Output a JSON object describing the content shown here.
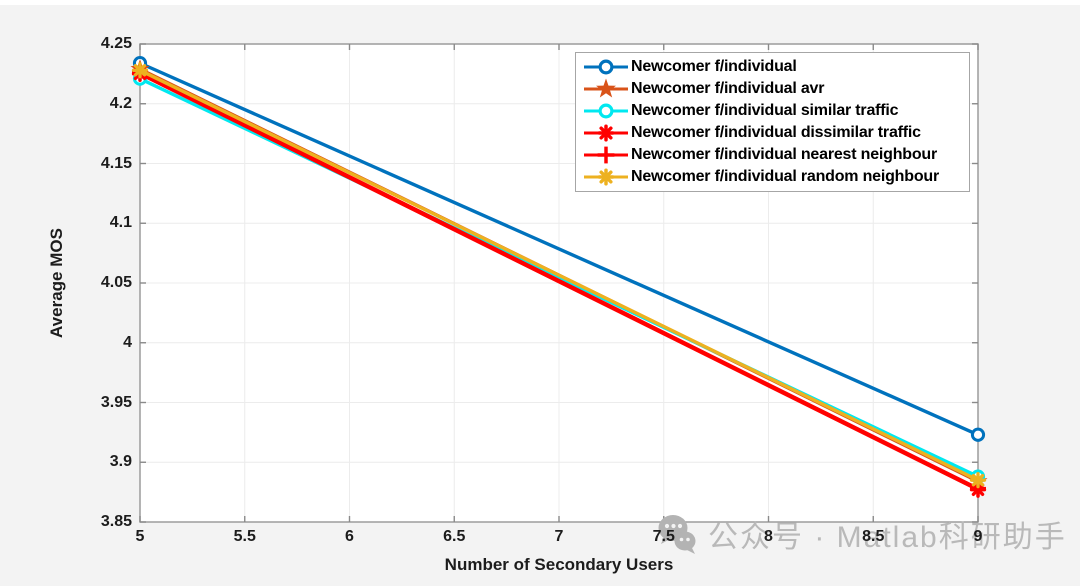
{
  "figure": {
    "background": "#f3f3f3",
    "plot_background": "#ffffff",
    "frame_color": "#9c9c9c",
    "grid_color": "#ececec",
    "tick_mark_color": "#8a8a8a",
    "text_color": "#1c1c1c"
  },
  "chart_data": {
    "type": "line",
    "title": "",
    "xlabel": "Number of Secondary Users",
    "ylabel": "Average MOS",
    "xlim": [
      5,
      9
    ],
    "ylim": [
      3.85,
      4.25
    ],
    "x": [
      5,
      9
    ],
    "x_ticks": [
      5,
      5.5,
      6,
      6.5,
      7,
      7.5,
      8,
      8.5,
      9
    ],
    "x_tick_labels": [
      "5",
      "5.5",
      "6",
      "6.5",
      "7",
      "7.5",
      "8",
      "8.5",
      "9"
    ],
    "y_ticks": [
      3.85,
      3.9,
      3.95,
      4,
      4.05,
      4.1,
      4.15,
      4.2,
      4.25
    ],
    "y_tick_labels": [
      "3.85",
      "3.9",
      "3.95",
      "4",
      "4.05",
      "4.1",
      "4.15",
      "4.2",
      "4.25"
    ],
    "grid": true,
    "legend_position": "top-right",
    "series": [
      {
        "name": "Newcomer f/individual",
        "color": "#0072BD",
        "marker": "open-circle",
        "values": [
          4.234,
          3.923
        ]
      },
      {
        "name": "Newcomer f/individual avr",
        "color": "#D95319",
        "marker": "pentagram",
        "values": [
          4.229,
          3.884
        ]
      },
      {
        "name": "Newcomer f/individual similar traffic",
        "color": "#00E8F0",
        "marker": "open-circle",
        "values": [
          4.221,
          3.888
        ]
      },
      {
        "name": "Newcomer f/individual dissimilar traffic",
        "color": "#FF0000",
        "marker": "asterisk",
        "values": [
          4.225,
          3.877
        ]
      },
      {
        "name": "Newcomer f/individual nearest neighbour",
        "color": "#FF0000",
        "marker": "plus",
        "values": [
          4.226,
          3.878
        ]
      },
      {
        "name": "Newcomer f/individual random neighbour",
        "color": "#EDB120",
        "marker": "asterisk",
        "values": [
          4.228,
          3.885
        ]
      }
    ]
  },
  "watermark": {
    "icon": "wechat-icon",
    "text": "公众号 · Matlab科研助手",
    "color": "#b9b9b9"
  }
}
